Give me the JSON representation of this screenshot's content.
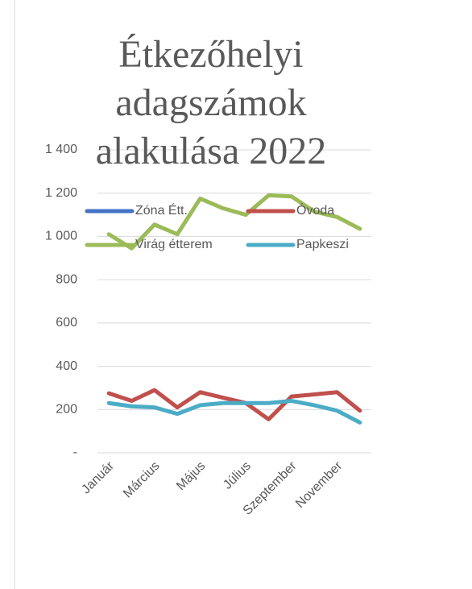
{
  "chart_data": {
    "type": "line",
    "title": "Étkezőhelyi adagszámok alakulása 2022",
    "categories": [
      "Január",
      null,
      "Március",
      null,
      "Május",
      null,
      "Július",
      null,
      "Szeptember",
      null,
      "November",
      null
    ],
    "series": [
      {
        "name": "Zóna Étt.",
        "color": "#4472c4",
        "values": [
          null,
          null,
          null,
          null,
          null,
          null,
          null,
          null,
          null,
          null,
          null,
          null
        ]
      },
      {
        "name": "Óvoda",
        "color": "#c0504d",
        "values": [
          275,
          240,
          290,
          210,
          280,
          255,
          230,
          155,
          260,
          270,
          280,
          195
        ]
      },
      {
        "name": "Virág étterem",
        "color": "#9bbb59",
        "values": [
          1010,
          945,
          1055,
          1010,
          1175,
          1130,
          1100,
          1190,
          1185,
          1115,
          1090,
          1035
        ]
      },
      {
        "name": "Papkeszi",
        "color": "#4bacc6",
        "values": [
          230,
          215,
          210,
          180,
          220,
          230,
          230,
          230,
          240,
          220,
          195,
          140
        ]
      }
    ],
    "ylim": [
      0,
      1400
    ],
    "yticks": [
      {
        "value": 0,
        "label": "-"
      },
      200,
      400,
      600,
      800,
      {
        "value": 1000,
        "label": "1 000"
      },
      {
        "value": 1200,
        "label": "1 200"
      },
      {
        "value": 1400,
        "label": "1 400"
      }
    ],
    "grid": true
  }
}
